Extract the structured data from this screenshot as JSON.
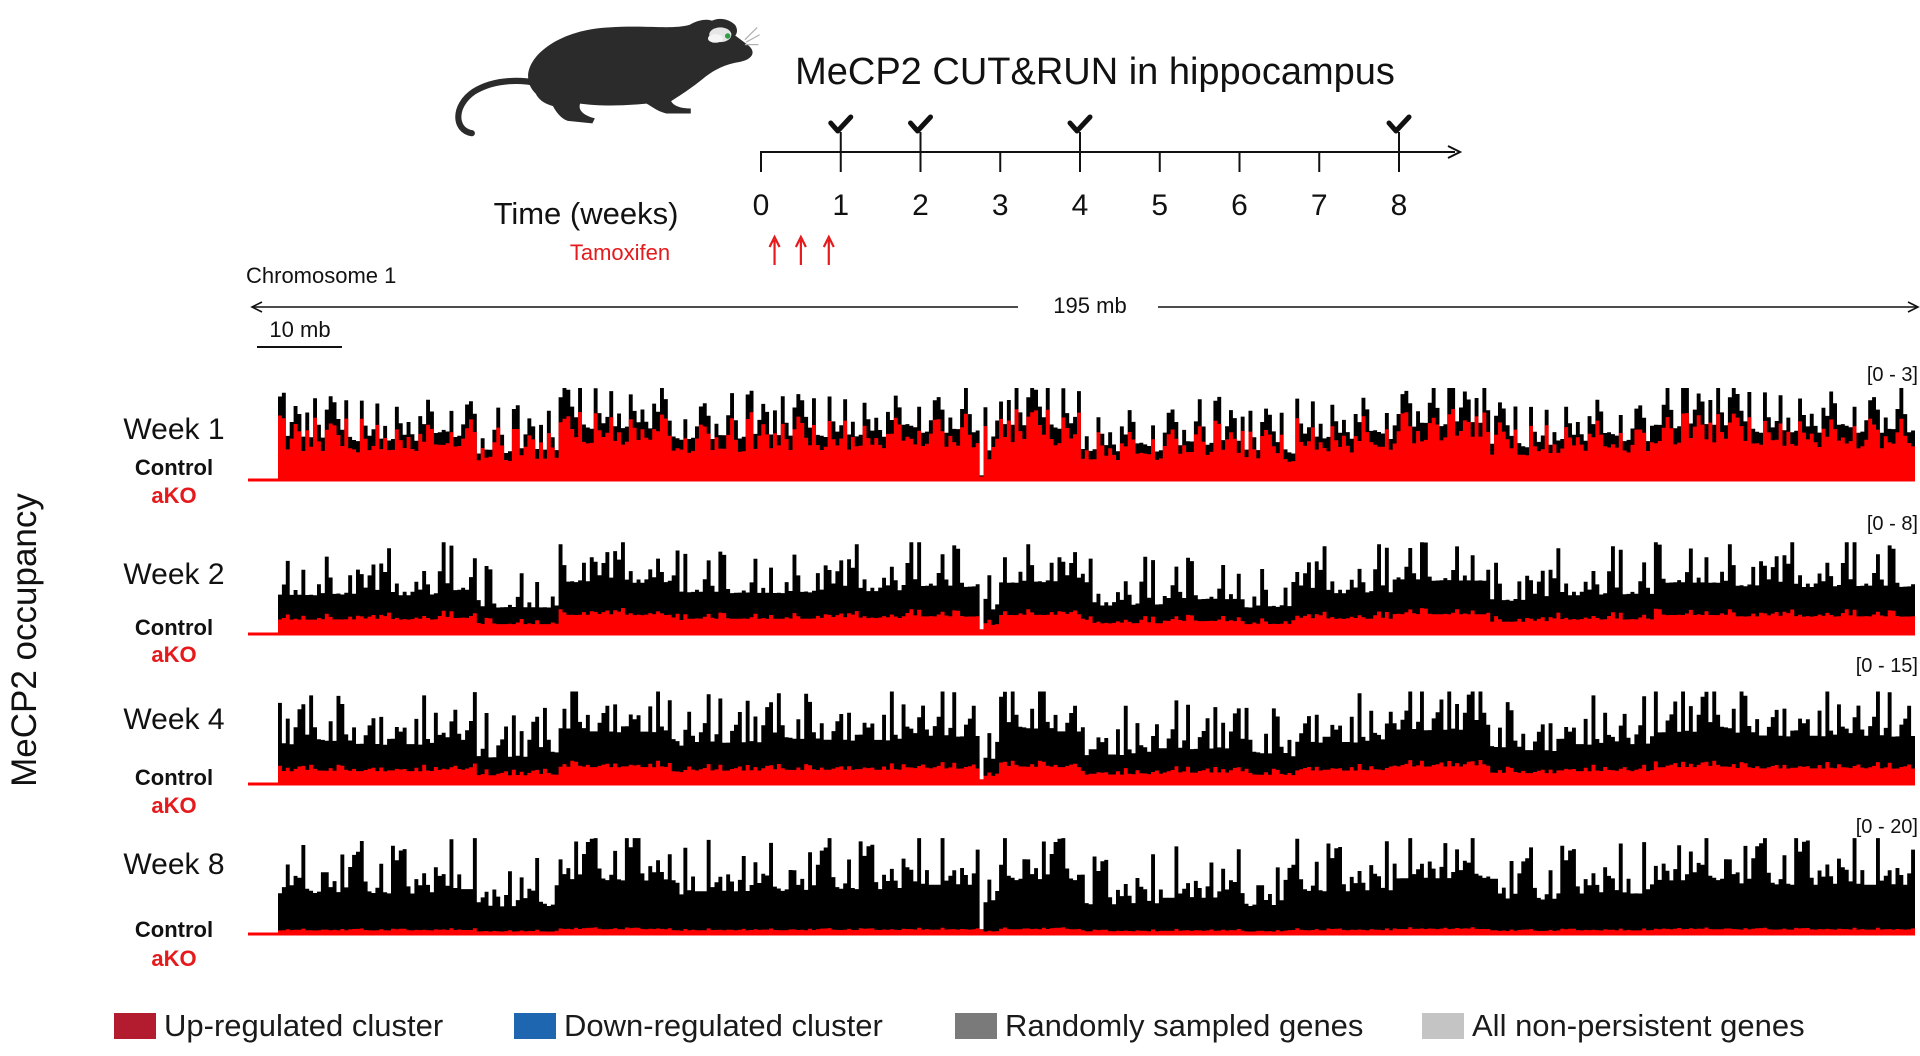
{
  "header": {
    "title": "MeCP2 CUT&RUN in hippocampus"
  },
  "timeline": {
    "axis_label": "Time (weeks)",
    "treatment_label": "Tamoxifen",
    "ticks": [
      "0",
      "1",
      "2",
      "3",
      "4",
      "5",
      "6",
      "7",
      "8"
    ],
    "sampled_weeks": [
      1,
      2,
      4,
      8
    ],
    "tamoxifen_doses_weeks": [
      0.17,
      0.5,
      0.85
    ]
  },
  "genome": {
    "chromosome_label": "Chromosome 1",
    "length_label": "195 mb",
    "scalebar_label": "10 mb"
  },
  "y_axis_label": "MeCP2 occupancy",
  "tracks": [
    {
      "week_label": "Week 1",
      "control_label": "Control",
      "ako_label": "aKO",
      "range_label": "[0 - 3]",
      "control_scale": 0.78,
      "ako_ratio": 0.78
    },
    {
      "week_label": "Week 2",
      "control_label": "Control",
      "ako_label": "aKO",
      "range_label": "[0 - 8]",
      "control_scale": 0.74,
      "ako_ratio": 0.25
    },
    {
      "week_label": "Week 4",
      "control_label": "Control",
      "ako_label": "aKO",
      "range_label": "[0 - 15]",
      "control_scale": 0.74,
      "ako_ratio": 0.22
    },
    {
      "week_label": "Week 8",
      "control_label": "Control",
      "ako_label": "aKO",
      "range_label": "[0 - 20]",
      "control_scale": 0.78,
      "ako_ratio": 0.06
    }
  ],
  "legend": [
    {
      "label": "Up-regulated cluster",
      "color": "#b31b2e"
    },
    {
      "label": "Down-regulated cluster",
      "color": "#1f66b0"
    },
    {
      "label": "Randomly sampled genes",
      "color": "#7a7a7a"
    },
    {
      "label": "All non-persistent genes",
      "color": "#c4c4c4"
    }
  ],
  "colors": {
    "control": "#000000",
    "ako": "#ff0000",
    "tamoxifen": "#e41a1c",
    "mouse": "#2b2b2b"
  },
  "icons": {
    "mouse": "mouse-icon",
    "check": "check-icon",
    "arrow": "up-arrow-icon"
  }
}
